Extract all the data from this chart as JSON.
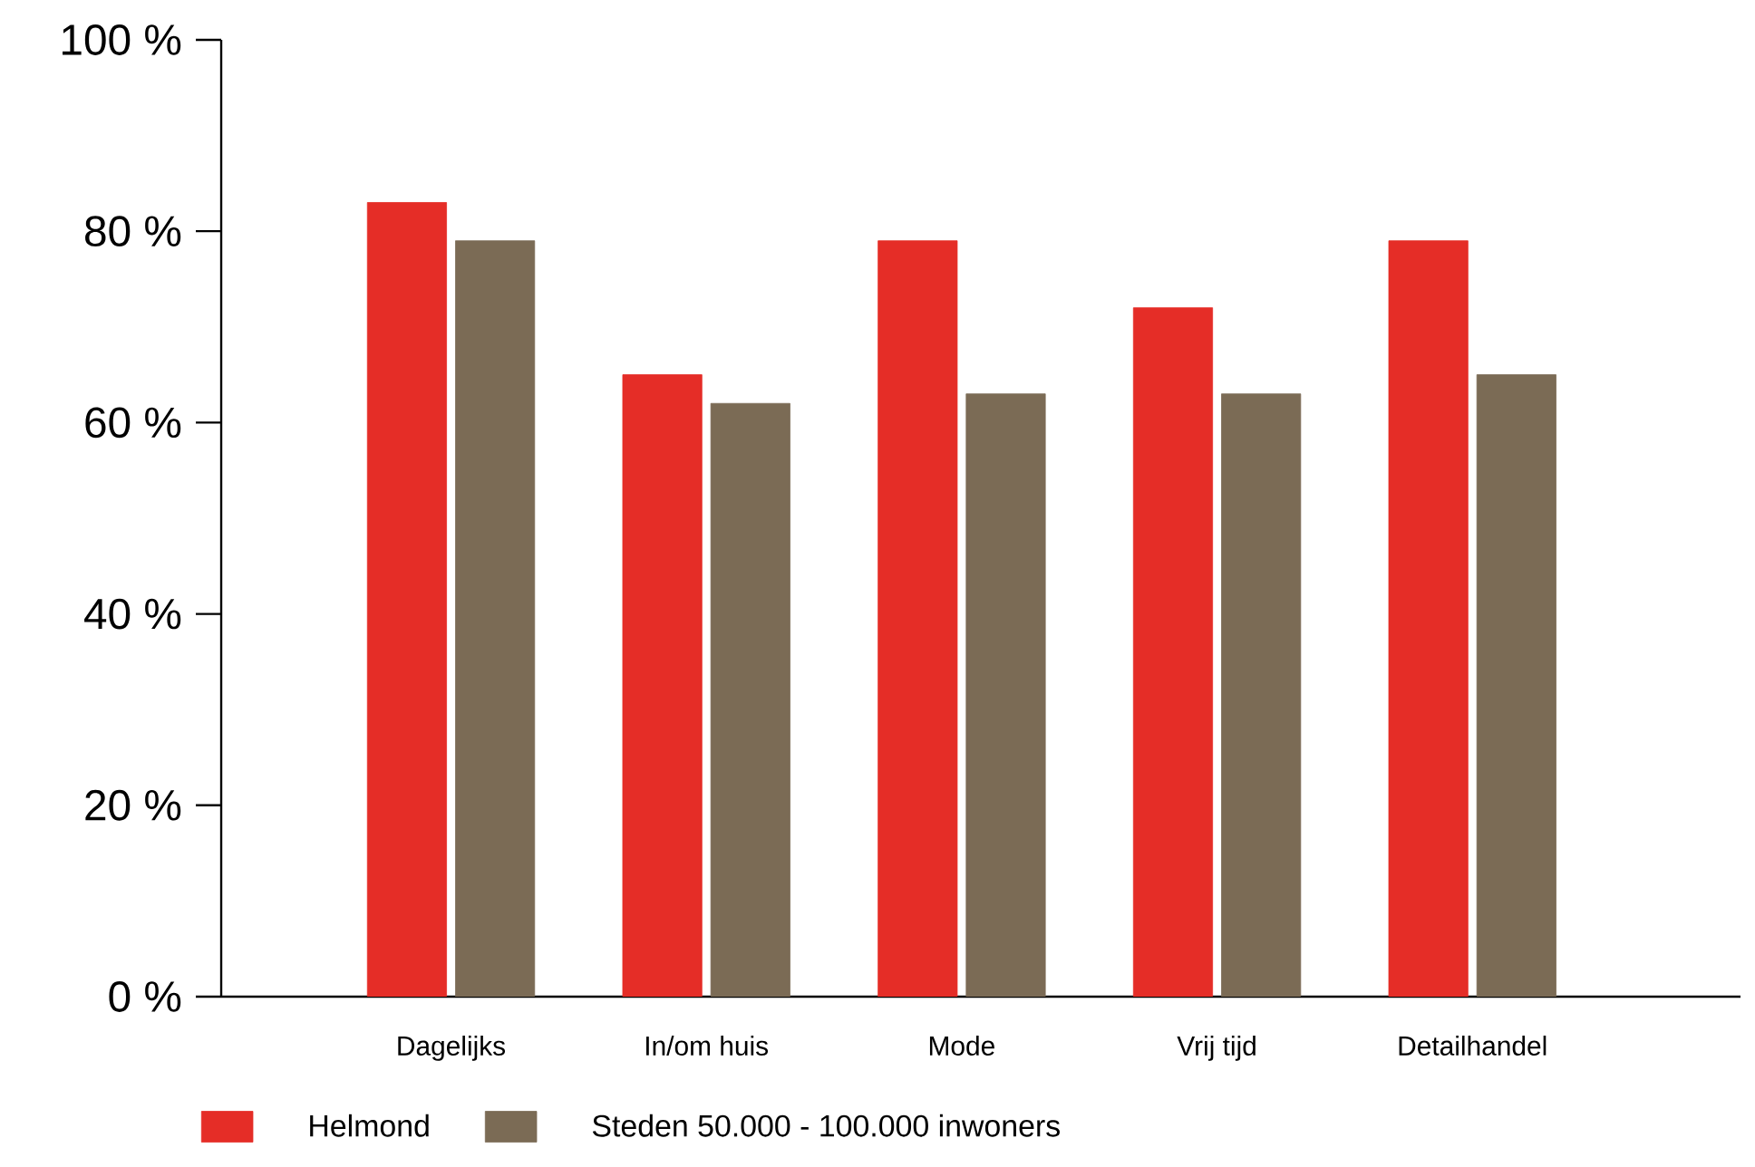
{
  "chart_data": {
    "type": "bar",
    "categories": [
      "Dagelijks",
      "In/om huis",
      "Mode",
      "Vrij tijd",
      "Detailhandel"
    ],
    "series": [
      {
        "name": "Helmond",
        "color": "#e52d27",
        "values": [
          83,
          65,
          79,
          72,
          79
        ]
      },
      {
        "name": "Steden 50.000 - 100.000 inwoners",
        "color": "#7b6b55",
        "values": [
          79,
          62,
          63,
          63,
          65
        ]
      }
    ],
    "ylim": [
      0,
      100
    ],
    "yticks": [
      {
        "value": 0,
        "label": "0 %"
      },
      {
        "value": 20,
        "label": "20 %"
      },
      {
        "value": 40,
        "label": "40 %"
      },
      {
        "value": 60,
        "label": "60 %"
      },
      {
        "value": 80,
        "label": "80 %"
      },
      {
        "value": 100,
        "label": "100 %"
      }
    ],
    "grid": false,
    "legend": "bottom left"
  }
}
